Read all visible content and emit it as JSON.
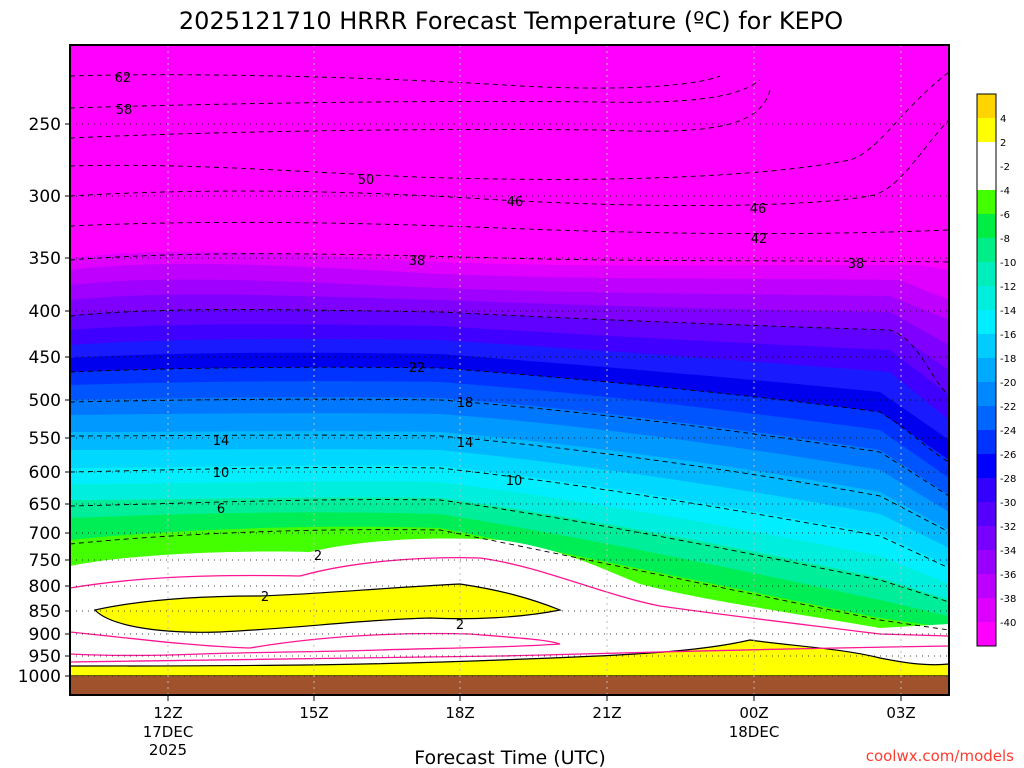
{
  "chart_data": {
    "type": "heatmap",
    "title": "2025121710 HRRR Forecast Temperature (ºC) for KEPO",
    "xlabel": "Forecast Time (UTC)",
    "ylabel": "",
    "x_ticks": [
      {
        "label": "12Z",
        "sub1": "17DEC",
        "sub2": "2025"
      },
      {
        "label": "15Z",
        "sub1": "",
        "sub2": ""
      },
      {
        "label": "18Z",
        "sub1": "",
        "sub2": ""
      },
      {
        "label": "21Z",
        "sub1": "",
        "sub2": ""
      },
      {
        "label": "00Z",
        "sub1": "18DEC",
        "sub2": ""
      },
      {
        "label": "03Z",
        "sub1": "",
        "sub2": ""
      }
    ],
    "y_ticks": [
      "250",
      "300",
      "350",
      "400",
      "450",
      "500",
      "550",
      "600",
      "650",
      "700",
      "750",
      "800",
      "850",
      "900",
      "950",
      "1000"
    ],
    "colorbar_labels": [
      "4",
      "2",
      "-2",
      "-4",
      "-6",
      "-8",
      "-10",
      "-12",
      "-14",
      "-16",
      "-18",
      "-20",
      "-22",
      "-24",
      "-26",
      "-28",
      "-30",
      "-32",
      "-34",
      "-36",
      "-38",
      "-40"
    ],
    "colorbar_colors": [
      "#ffd400",
      "#ffff00",
      "#ffffff",
      "#ffffff",
      "#44ff00",
      "#00ee44",
      "#00ee88",
      "#00eebb",
      "#00eedd",
      "#00eeff",
      "#00ccff",
      "#00aaff",
      "#0088ff",
      "#0066ff",
      "#0033ff",
      "#0000ff",
      "#3300ff",
      "#5500ff",
      "#7700ff",
      "#9900ff",
      "#bb00ff",
      "#dd00ff",
      "#ff00ff"
    ],
    "contour_labels": [
      "62",
      "58",
      "50",
      "46",
      "46",
      "42",
      "38",
      "38",
      "22",
      "18",
      "14",
      "14",
      "10",
      "10",
      "6",
      "2",
      "2",
      "2"
    ],
    "colors": {
      "background_top": "#ff00ff",
      "ground": "#a0522d",
      "freezing_line": "#ff1493"
    }
  },
  "credit": "coolwx.com/models"
}
